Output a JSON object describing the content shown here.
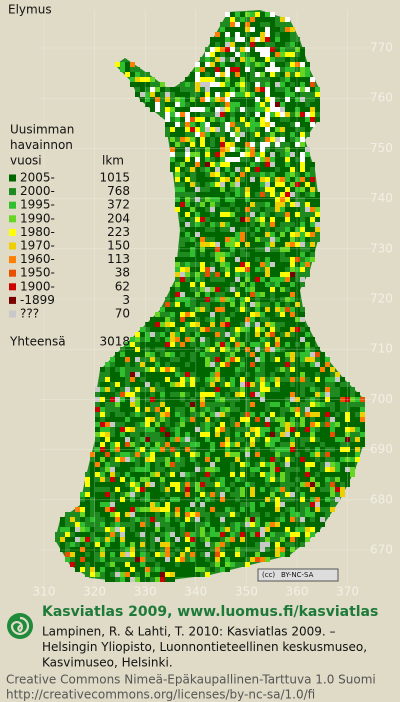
{
  "title": "Elymus",
  "legend": {
    "heading": [
      "Uusimman",
      "havainnon",
      "vuosi"
    ],
    "count_heading": "lkm",
    "rows": [
      {
        "label": "2005-",
        "count": 1015,
        "color": "#006600"
      },
      {
        "label": "2000-",
        "count": 768,
        "color": "#1f8a1f"
      },
      {
        "label": "1995-",
        "count": 372,
        "color": "#2fbf2f"
      },
      {
        "label": "1990-",
        "count": 204,
        "color": "#66d622"
      },
      {
        "label": "1980-",
        "count": 223,
        "color": "#ffff00"
      },
      {
        "label": "1970-",
        "count": 150,
        "color": "#eecf00"
      },
      {
        "label": "1960-",
        "count": 113,
        "color": "#ff8000"
      },
      {
        "label": "1950-",
        "count": 38,
        "color": "#e85000"
      },
      {
        "label": "1900-",
        "count": 62,
        "color": "#cc0000"
      },
      {
        "label": "-1899",
        "count": 3,
        "color": "#7a0000"
      },
      {
        "label": "???",
        "count": 70,
        "color": "#c8c8c8"
      }
    ],
    "total_label": "Yhteensä",
    "total": 3018
  },
  "grid": {
    "y_labels": [
      770,
      760,
      750,
      740,
      730,
      720,
      710,
      700,
      690,
      680,
      670
    ],
    "x_labels": [
      310,
      320,
      330,
      340,
      350,
      360,
      370
    ]
  },
  "license_badge": "BY-NC-SA",
  "footer": {
    "heading": "Kasviatlas 2009, www.luomus.fi/kasviatlas",
    "citation": [
      "Lampinen, R. & Lahti, T. 2010: Kasviatlas 2009. –",
      "Helsingin Yliopisto, Luonnontieteellinen keskusmuseo,",
      "Kasvimuseo, Helsinki."
    ],
    "license": [
      "Creative Commons Nimeä-Epäkaupallinen-Tarttuva 1.0 Suomi",
      "http://creativecommons.org/licenses/by-nc-sa/1.0/fi"
    ]
  }
}
